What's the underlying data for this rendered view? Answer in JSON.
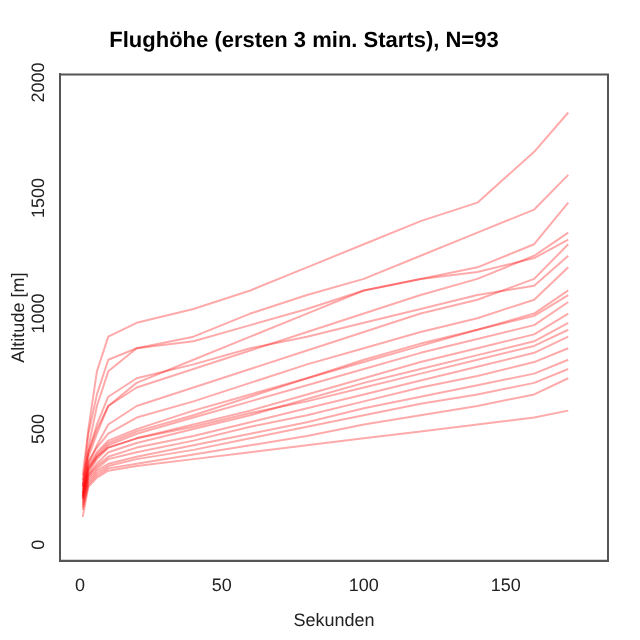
{
  "chart_data": {
    "type": "line",
    "title": "Flughöhe (ersten 3 min. Starts), N=93",
    "xlabel": "Sekunden",
    "ylabel": "Altitude [m]",
    "x": [
      1,
      3,
      6,
      10,
      20,
      40,
      60,
      80,
      100,
      120,
      140,
      160,
      172
    ],
    "xlim": [
      -7,
      186
    ],
    "xticks": [
      0,
      50,
      100,
      150
    ],
    "ylim": [
      -70,
      2035
    ],
    "yticks": [
      0,
      500,
      1000,
      1500,
      2000
    ],
    "grid": false,
    "legend": false,
    "marker": "none",
    "line_style": "solid",
    "series": [
      {
        "color": "#ff0000",
        "values": [
          300,
          500,
          750,
          900,
          960,
          1020,
          1100,
          1200,
          1300,
          1400,
          1480,
          1700,
          1870
        ]
      },
      {
        "color": "#ff0000",
        "values": [
          250,
          420,
          600,
          750,
          850,
          900,
          1000,
          1080,
          1150,
          1250,
          1350,
          1450,
          1600
        ]
      },
      {
        "color": "#ff0000",
        "values": [
          280,
          400,
          500,
          600,
          700,
          800,
          900,
          1000,
          1100,
          1150,
          1200,
          1300,
          1480
        ]
      },
      {
        "color": "#ff0000",
        "values": [
          200,
          380,
          480,
          600,
          680,
          760,
          840,
          920,
          1000,
          1080,
          1150,
          1250,
          1350
        ]
      },
      {
        "color": "#ff0000",
        "values": [
          220,
          350,
          430,
          520,
          600,
          680,
          760,
          840,
          920,
          1000,
          1060,
          1150,
          1300
        ]
      },
      {
        "color": "#ff0000",
        "values": [
          250,
          360,
          420,
          480,
          550,
          620,
          700,
          780,
          850,
          920,
          980,
          1060,
          1200
        ]
      },
      {
        "color": "#ff0000",
        "values": [
          230,
          340,
          400,
          450,
          500,
          580,
          650,
          720,
          800,
          870,
          930,
          1000,
          1100
        ]
      },
      {
        "color": "#ff0000",
        "values": [
          210,
          320,
          380,
          430,
          480,
          550,
          620,
          690,
          760,
          830,
          890,
          950,
          1050
        ]
      },
      {
        "color": "#ff0000",
        "values": [
          200,
          310,
          370,
          420,
          460,
          520,
          580,
          650,
          720,
          790,
          850,
          910,
          1000
        ]
      },
      {
        "color": "#ff0000",
        "values": [
          190,
          300,
          350,
          400,
          440,
          500,
          560,
          630,
          700,
          760,
          820,
          880,
          960
        ]
      },
      {
        "color": "#ff0000",
        "values": [
          220,
          330,
          380,
          420,
          460,
          510,
          570,
          620,
          680,
          740,
          800,
          860,
          930
        ]
      },
      {
        "color": "#ff0000",
        "values": [
          200,
          300,
          340,
          380,
          420,
          470,
          530,
          590,
          650,
          710,
          770,
          830,
          900
        ]
      },
      {
        "color": "#ff0000",
        "values": [
          180,
          290,
          330,
          370,
          400,
          450,
          510,
          560,
          620,
          680,
          730,
          790,
          850
        ]
      },
      {
        "color": "#ff0000",
        "values": [
          170,
          280,
          320,
          350,
          380,
          430,
          480,
          530,
          590,
          640,
          690,
          740,
          800
        ]
      },
      {
        "color": "#ff0000",
        "values": [
          160,
          270,
          310,
          340,
          370,
          410,
          460,
          510,
          560,
          610,
          650,
          700,
          760
        ]
      },
      {
        "color": "#ff0000",
        "values": [
          150,
          260,
          300,
          330,
          350,
          390,
          430,
          470,
          520,
          560,
          600,
          650,
          720
        ]
      },
      {
        "color": "#ff0000",
        "values": [
          120,
          250,
          290,
          320,
          340,
          370,
          400,
          430,
          460,
          490,
          520,
          550,
          580
        ]
      },
      {
        "color": "#ff0000",
        "values": [
          260,
          480,
          650,
          800,
          850,
          880,
          950,
          1020,
          1100,
          1150,
          1180,
          1240,
          1320
        ]
      },
      {
        "color": "#ff0000",
        "values": [
          240,
          400,
          520,
          640,
          720,
          780,
          850,
          900,
          960,
          1020,
          1080,
          1120,
          1250
        ]
      },
      {
        "color": "#ff0000",
        "values": [
          210,
          330,
          390,
          440,
          490,
          560,
          640,
          720,
          790,
          860,
          930,
          990,
          1080
        ]
      }
    ]
  }
}
